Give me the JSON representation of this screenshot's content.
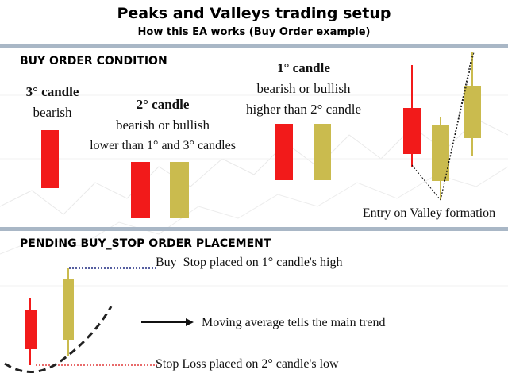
{
  "header": {
    "title": "Peaks and Valleys trading setup",
    "subtitle": "How this EA works (Buy Order example)"
  },
  "section1": {
    "heading": "BUY ORDER CONDITION",
    "candle3": {
      "title": "3° candle",
      "desc": "bearish"
    },
    "candle2": {
      "title": "2° candle",
      "desc1": "bearish or bullish",
      "desc2": "lower than 1° and 3° candles"
    },
    "candle1": {
      "title": "1° candle",
      "desc1": "bearish or bullish",
      "desc2": "higher than 2° candle"
    },
    "entry_label": "Entry on Valley formation"
  },
  "section2": {
    "heading": "PENDING BUY_STOP ORDER PLACEMENT",
    "buy_stop_label": "Buy_Stop placed on 1° candle's high",
    "ma_label": "Moving average tells the main trend",
    "stop_loss_label": "Stop Loss placed on 2° candle's low"
  },
  "colors": {
    "bearish": "#f21a1a",
    "bullish": "#cabb4e",
    "divider": "#a9b7c6",
    "buy_stop_line": "#1f2a80",
    "stop_loss_line": "#e03a3a"
  }
}
